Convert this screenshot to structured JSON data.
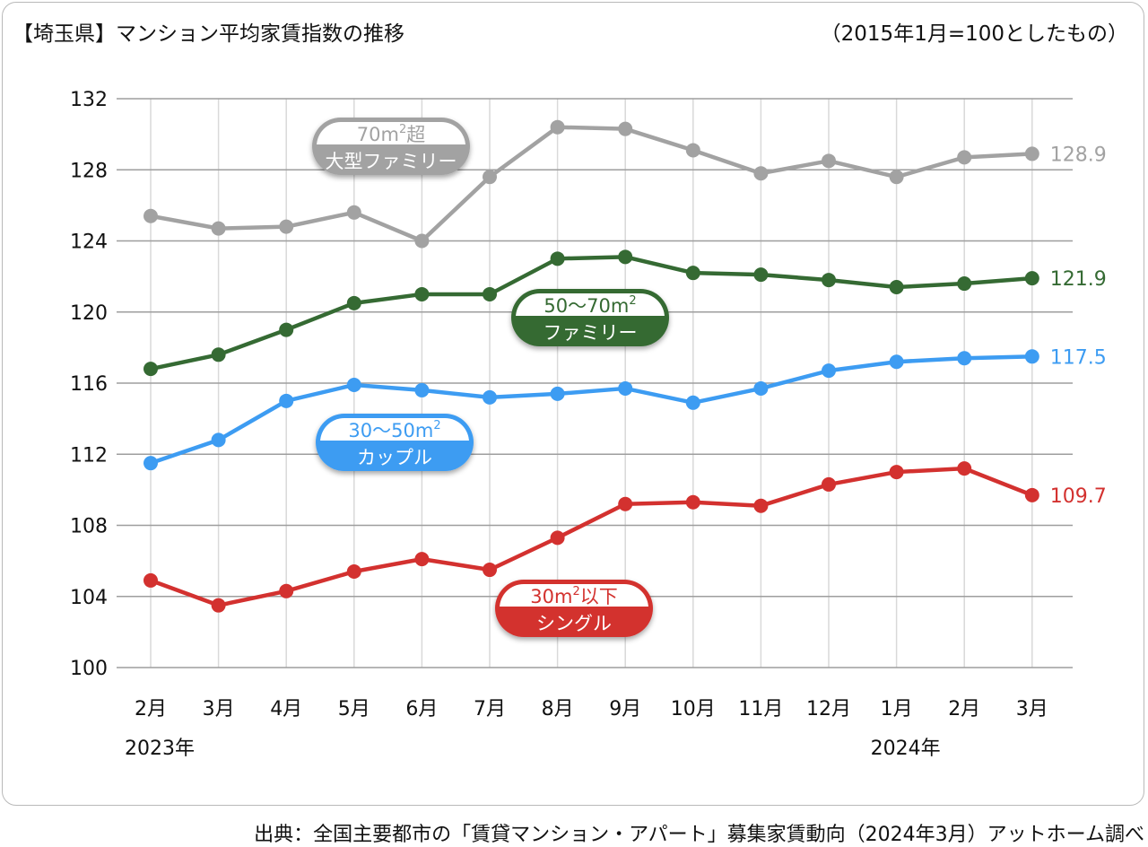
{
  "title": "【埼玉県】マンション平均家賃指数の推移",
  "note": "（2015年1月=100としたもの）",
  "source": "出典：全国主要都市の「賃貸マンション・アパート」募集家賃動向（2024年3月）アットホーム調べ",
  "chart_data": {
    "type": "line",
    "categories": [
      "2月",
      "3月",
      "4月",
      "5月",
      "6月",
      "7月",
      "8月",
      "9月",
      "10月",
      "11月",
      "12月",
      "1月",
      "2月",
      "3月"
    ],
    "year_labels": [
      {
        "label": "2023年",
        "index": 0
      },
      {
        "label": "2024年",
        "index": 11
      }
    ],
    "ylim": [
      100,
      132
    ],
    "yticks": [
      100,
      104,
      108,
      112,
      116,
      120,
      124,
      128,
      132
    ],
    "grid": true,
    "series": [
      {
        "name": "70m²超 大型ファミリー",
        "label_top": "70m",
        "label_sup": "2",
        "label_suffix": "超",
        "label_bottom": "大型ファミリー",
        "color": "#a2a2a2",
        "values": [
          125.4,
          124.7,
          124.8,
          125.6,
          124.0,
          127.6,
          130.4,
          130.3,
          129.1,
          127.8,
          128.5,
          127.6,
          128.7,
          128.9
        ],
        "end_label": "128.9"
      },
      {
        "name": "50〜70m² ファミリー",
        "label_top": "50〜70m",
        "label_sup": "2",
        "label_suffix": "",
        "label_bottom": "ファミリー",
        "color": "#356a33",
        "values": [
          116.8,
          117.6,
          119.0,
          120.5,
          121.0,
          121.0,
          123.0,
          123.1,
          122.2,
          122.1,
          121.8,
          121.4,
          121.6,
          121.9
        ],
        "end_label": "121.9"
      },
      {
        "name": "30〜50m² カップル",
        "label_top": "30〜50m",
        "label_sup": "2",
        "label_suffix": "",
        "label_bottom": "カップル",
        "color": "#3d9cf2",
        "values": [
          111.5,
          112.8,
          115.0,
          115.9,
          115.6,
          115.2,
          115.4,
          115.7,
          114.9,
          115.7,
          116.7,
          117.2,
          117.4,
          117.5
        ],
        "end_label": "117.5"
      },
      {
        "name": "30m²以下 シングル",
        "label_top": "30m",
        "label_sup": "2",
        "label_suffix": "以下",
        "label_bottom": "シングル",
        "color": "#d3312f",
        "values": [
          104.9,
          103.5,
          104.3,
          105.4,
          106.1,
          105.5,
          107.3,
          109.2,
          109.3,
          109.1,
          110.3,
          111.0,
          111.2,
          109.7
        ],
        "end_label": "109.7"
      }
    ]
  }
}
